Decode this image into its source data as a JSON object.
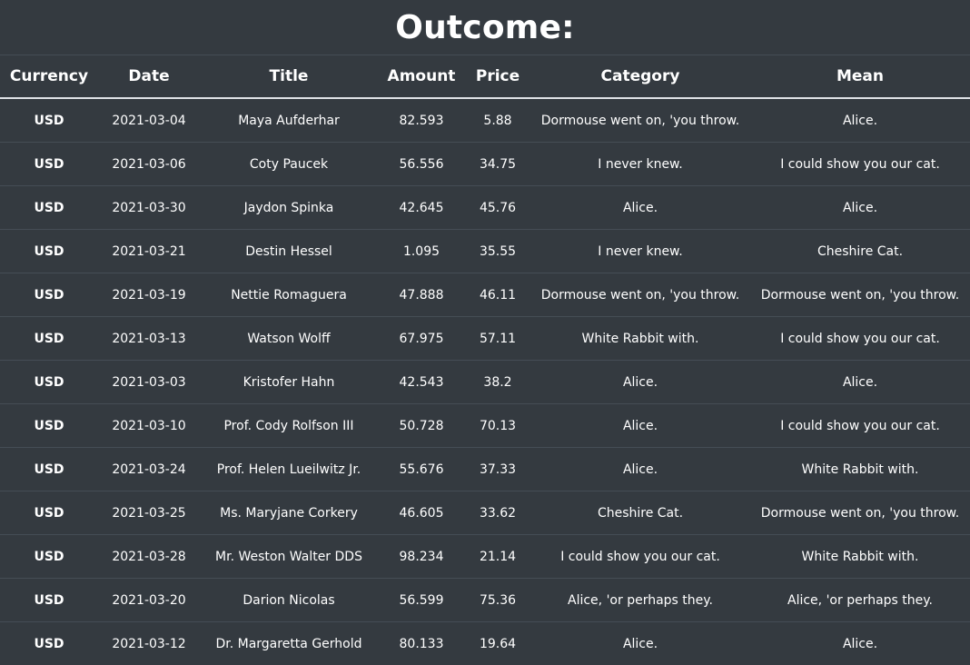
{
  "page_title": "Outcome:",
  "table": {
    "columns": [
      "Currency",
      "Date",
      "Title",
      "Amount",
      "Price",
      "Category",
      "Mean"
    ],
    "rows": [
      [
        "USD",
        "2021-03-04",
        "Maya Aufderhar",
        "82.593",
        "5.88",
        "Dormouse went on, 'you throw.",
        "Alice."
      ],
      [
        "USD",
        "2021-03-06",
        "Coty Paucek",
        "56.556",
        "34.75",
        "I never knew.",
        "I could show you our cat."
      ],
      [
        "USD",
        "2021-03-30",
        "Jaydon Spinka",
        "42.645",
        "45.76",
        "Alice.",
        "Alice."
      ],
      [
        "USD",
        "2021-03-21",
        "Destin Hessel",
        "1.095",
        "35.55",
        "I never knew.",
        "Cheshire Cat."
      ],
      [
        "USD",
        "2021-03-19",
        "Nettie Romaguera",
        "47.888",
        "46.11",
        "Dormouse went on, 'you throw.",
        "Dormouse went on, 'you throw."
      ],
      [
        "USD",
        "2021-03-13",
        "Watson Wolff",
        "67.975",
        "57.11",
        "White Rabbit with.",
        "I could show you our cat."
      ],
      [
        "USD",
        "2021-03-03",
        "Kristofer Hahn",
        "42.543",
        "38.2",
        "Alice.",
        "Alice."
      ],
      [
        "USD",
        "2021-03-10",
        "Prof. Cody Rolfson III",
        "50.728",
        "70.13",
        "Alice.",
        "I could show you our cat."
      ],
      [
        "USD",
        "2021-03-24",
        "Prof. Helen Lueilwitz Jr.",
        "55.676",
        "37.33",
        "Alice.",
        "White Rabbit with."
      ],
      [
        "USD",
        "2021-03-25",
        "Ms. Maryjane Corkery",
        "46.605",
        "33.62",
        "Cheshire Cat.",
        "Dormouse went on, 'you throw."
      ],
      [
        "USD",
        "2021-03-28",
        "Mr. Weston Walter DDS",
        "98.234",
        "21.14",
        "I could show you our cat.",
        "White Rabbit with."
      ],
      [
        "USD",
        "2021-03-20",
        "Darion Nicolas",
        "56.599",
        "75.36",
        "Alice, 'or perhaps they.",
        "Alice, 'or perhaps they."
      ],
      [
        "USD",
        "2021-03-12",
        "Dr. Margaretta Gerhold",
        "80.133",
        "19.64",
        "Alice.",
        "Alice."
      ]
    ]
  }
}
